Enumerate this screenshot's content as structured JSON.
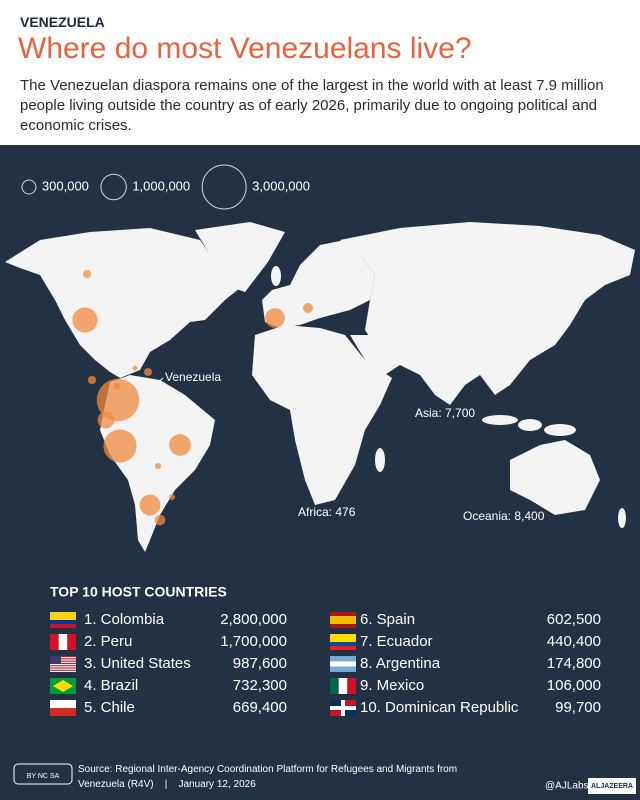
{
  "header": {
    "kicker": "VENEZUELA",
    "title": "Where do most Venezuelans live?",
    "subtitle": "The Venezuelan diaspora remains one of the largest in the world with at least 7.9 million people living outside the country as of early 2026, primarily due to ongoing political and economic crises."
  },
  "legend": {
    "items": [
      "300,000",
      "1,000,000",
      "3,000,000"
    ]
  },
  "map": {
    "country_label": "Venezuela",
    "regions": [
      "Asia: 7,700",
      "Africa: 476",
      "Oceania: 8,400"
    ]
  },
  "table": {
    "title": "TOP 10 HOST COUNTRIES",
    "rows": [
      [
        "1. Colombia",
        "2,800,000"
      ],
      [
        "2. Peru",
        "1,700,000"
      ],
      [
        "3. United States",
        "987,600"
      ],
      [
        "4. Brazil",
        "732,300"
      ],
      [
        "5. Chile",
        "669,400"
      ],
      [
        "6. Spain",
        "602,500"
      ],
      [
        "7. Ecuador",
        "440,400"
      ],
      [
        "8. Argentina",
        "174,800"
      ],
      [
        "9. Mexico",
        "106,000"
      ],
      [
        "10. Dominican Republic",
        "99,700"
      ]
    ]
  },
  "footer": {
    "source": "Source: Regional Inter-Agency Coordination Platform for Refugees and Migrants from Venezuela (R4V)",
    "separator": "|",
    "date": "January 12, 2026",
    "credit": "@AJLabs",
    "logo": "ALJAZEERA",
    "license": "BY NC SA"
  }
}
